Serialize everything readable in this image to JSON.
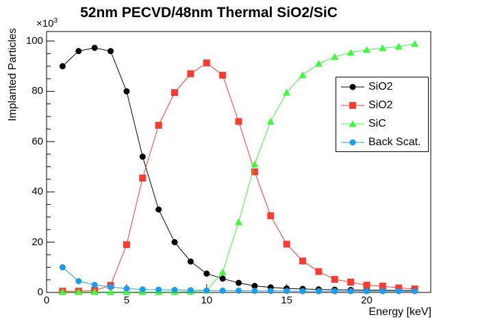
{
  "title": "52nm PECVD/48nm Thermal SiO2/SiC",
  "chart_data": {
    "type": "line",
    "title": "52nm PECVD/48nm Thermal SiO2/SiC",
    "xlabel": "Energy [keV]",
    "ylabel": "Implanted Particles",
    "y_multiplier": {
      "base": "×10",
      "exponent": "3"
    },
    "xlim": [
      0,
      24
    ],
    "ylim": [
      0,
      103.8
    ],
    "x_ticks": [
      0,
      5,
      10,
      15,
      20
    ],
    "x_minor_step": 1,
    "y_ticks": [
      0,
      20,
      40,
      60,
      80,
      100
    ],
    "y_minor_step": 5,
    "grid": false,
    "legend_position": "middle-right",
    "frame_color": "#000000",
    "x": [
      1,
      2,
      3,
      4,
      5,
      6,
      7,
      8,
      9,
      10,
      11,
      12,
      13,
      14,
      15,
      16,
      17,
      18,
      19,
      20,
      21,
      22,
      23
    ],
    "series": [
      {
        "name": "SiO2",
        "marker": "circle",
        "color": "#000000",
        "values": [
          90,
          96,
          97.3,
          96,
          80,
          54,
          33,
          20,
          12.3,
          7.5,
          5.5,
          3.8,
          2.6,
          2.0,
          1.6,
          1.4,
          1.2,
          1.1,
          1.0,
          0.9,
          0.9,
          0.8,
          0.8
        ]
      },
      {
        "name": "SiO2",
        "marker": "square",
        "color": "#f93b32",
        "values": [
          0.5,
          0.5,
          0.8,
          2.8,
          19,
          45.5,
          66.5,
          79.5,
          87,
          91.3,
          86.4,
          68,
          48,
          30.5,
          19.2,
          12.5,
          8.3,
          5.2,
          4.1,
          2.9,
          2.5,
          1.8,
          1.4
        ]
      },
      {
        "name": "SiC",
        "marker": "triangle",
        "color": "#3ffa3f",
        "values": [
          0.2,
          0.2,
          0.2,
          0.2,
          0.2,
          0.2,
          0.2,
          0.2,
          0.3,
          0.8,
          8,
          28,
          51,
          68,
          79.5,
          86.5,
          91,
          93.7,
          95.4,
          96.5,
          97.2,
          97.8,
          98.9
        ]
      },
      {
        "name": "Back Scat.",
        "marker": "circle",
        "color": "#1d9ce8",
        "values": [
          10,
          4.5,
          3,
          2.2,
          1.5,
          1.2,
          1.1,
          1.0,
          0.9,
          0.8,
          0.7,
          0.7,
          0.6,
          0.6,
          0.6,
          0.5,
          0.5,
          0.5,
          0.5,
          0.5,
          0.5,
          0.5,
          0.5
        ]
      }
    ]
  }
}
